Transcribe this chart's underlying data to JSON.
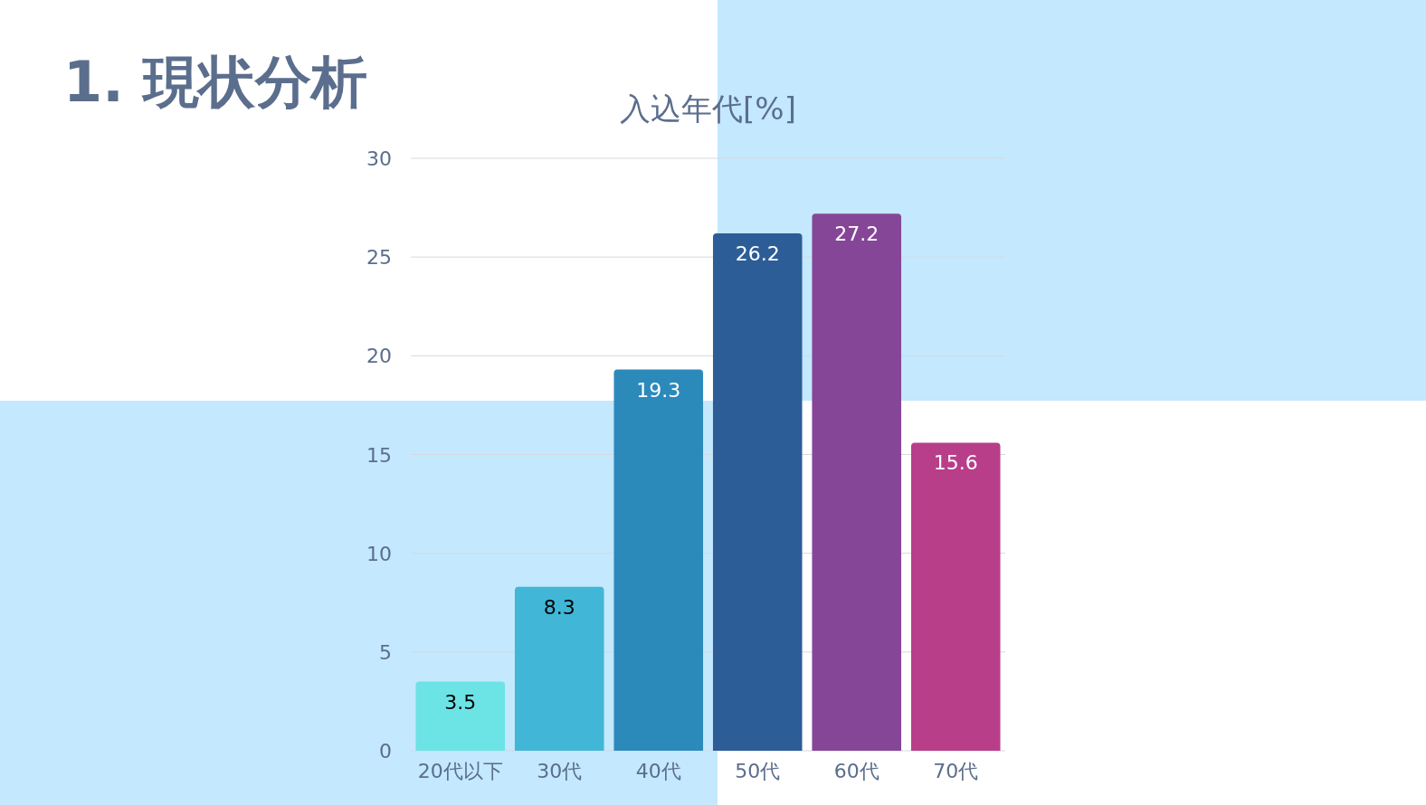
{
  "chart_data": {
    "type": "bar",
    "title": "1. 現状分析",
    "subtitle": "入込年代[%]",
    "categories": [
      "20代以下",
      "30代",
      "40代",
      "50代",
      "60代",
      "70代"
    ],
    "values": [
      3.5,
      8.3,
      19.3,
      26.2,
      27.2,
      15.6
    ],
    "colors": [
      "#6ce3e5",
      "#41b6d6",
      "#2c8abb",
      "#2d5d97",
      "#854698",
      "#b83e8a"
    ],
    "ylim": [
      0,
      30
    ],
    "yticks": [
      0,
      5,
      10,
      15,
      20,
      25,
      30
    ],
    "grid": "y",
    "data_labels": true
  }
}
